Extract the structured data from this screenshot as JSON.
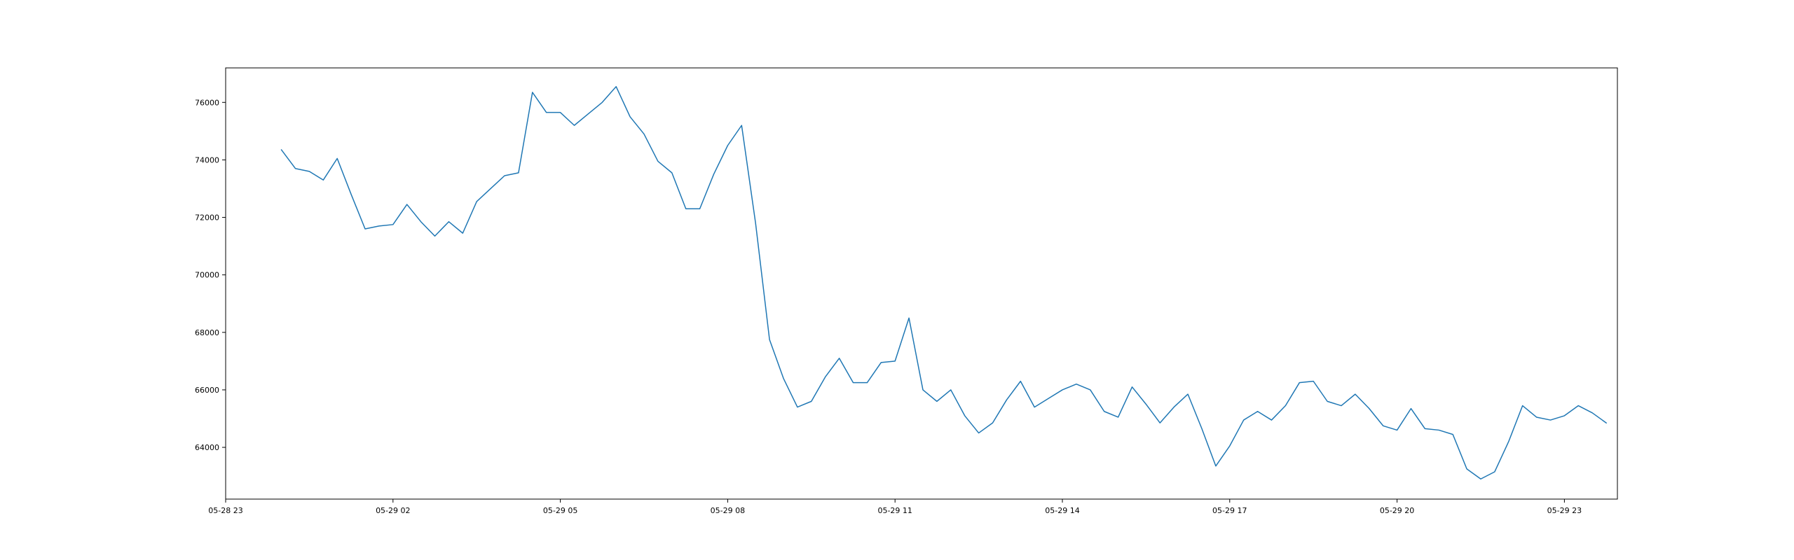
{
  "chart_data": {
    "type": "line",
    "title": "",
    "xlabel": "",
    "ylabel": "",
    "grid": false,
    "xlim": [
      "05-28 23:00",
      "05-29 23:57"
    ],
    "ylim": [
      62200,
      77200
    ],
    "x_ticks": [
      "05-28 23",
      "05-29 02",
      "05-29 05",
      "05-29 08",
      "05-29 11",
      "05-29 14",
      "05-29 17",
      "05-29 20",
      "05-29 23"
    ],
    "y_ticks": [
      "64000",
      "66000",
      "68000",
      "70000",
      "72000",
      "74000",
      "76000"
    ],
    "series": [
      {
        "color": "#1f77b4",
        "x": [
          "05-29 00:00",
          "05-29 00:15",
          "05-29 00:30",
          "05-29 00:45",
          "05-29 01:00",
          "05-29 01:15",
          "05-29 01:30",
          "05-29 01:45",
          "05-29 02:00",
          "05-29 02:15",
          "05-29 02:30",
          "05-29 02:45",
          "05-29 03:00",
          "05-29 03:15",
          "05-29 03:30",
          "05-29 03:45",
          "05-29 04:00",
          "05-29 04:15",
          "05-29 04:30",
          "05-29 04:45",
          "05-29 05:00",
          "05-29 05:15",
          "05-29 05:30",
          "05-29 05:45",
          "05-29 06:00",
          "05-29 06:15",
          "05-29 06:30",
          "05-29 06:45",
          "05-29 07:00",
          "05-29 07:15",
          "05-29 07:30",
          "05-29 07:45",
          "05-29 08:00",
          "05-29 08:15",
          "05-29 08:30",
          "05-29 08:45",
          "05-29 09:00",
          "05-29 09:15",
          "05-29 09:30",
          "05-29 09:45",
          "05-29 10:00",
          "05-29 10:15",
          "05-29 10:30",
          "05-29 10:45",
          "05-29 11:00",
          "05-29 11:15",
          "05-29 11:30",
          "05-29 11:45",
          "05-29 12:00",
          "05-29 12:15",
          "05-29 12:30",
          "05-29 12:45",
          "05-29 13:00",
          "05-29 13:15",
          "05-29 13:30",
          "05-29 13:45",
          "05-29 14:00",
          "05-29 14:15",
          "05-29 14:30",
          "05-29 14:45",
          "05-29 15:00",
          "05-29 15:15",
          "05-29 15:30",
          "05-29 15:45",
          "05-29 16:00",
          "05-29 16:15",
          "05-29 16:30",
          "05-29 16:45",
          "05-29 17:00",
          "05-29 17:15",
          "05-29 17:30",
          "05-29 17:45",
          "05-29 18:00",
          "05-29 18:15",
          "05-29 18:30",
          "05-29 18:45",
          "05-29 19:00",
          "05-29 19:15",
          "05-29 19:30",
          "05-29 19:45",
          "05-29 20:00",
          "05-29 20:15",
          "05-29 20:30",
          "05-29 20:45",
          "05-29 21:00",
          "05-29 21:15",
          "05-29 21:30",
          "05-29 21:45",
          "05-29 22:00",
          "05-29 22:15",
          "05-29 22:30",
          "05-29 22:45",
          "05-29 23:00",
          "05-29 23:15",
          "05-29 23:30",
          "05-29 23:45"
        ],
        "values": [
          74350,
          73700,
          73600,
          73300,
          74050,
          72800,
          71600,
          71700,
          71750,
          72450,
          71850,
          71350,
          71850,
          71450,
          72550,
          73000,
          73450,
          73550,
          76350,
          75650,
          75650,
          75200,
          75600,
          76000,
          76550,
          75500,
          74900,
          73950,
          73550,
          72300,
          72300,
          73500,
          74500,
          75200,
          71800,
          67750,
          66400,
          65400,
          65600,
          66450,
          67100,
          66250,
          66250,
          66950,
          67000,
          68500,
          66000,
          65600,
          66000,
          65100,
          64500,
          64850,
          65650,
          66300,
          65400,
          65700,
          66000,
          66200,
          66000,
          65250,
          65050,
          66100,
          65500,
          64850,
          65400,
          65850,
          64650,
          63350,
          64050,
          64950,
          65250,
          64950,
          65450,
          66250,
          66300,
          65600,
          65450,
          65850,
          65350,
          64750,
          64600,
          65350,
          64650,
          64600,
          64450,
          63250,
          62900,
          63150,
          64200,
          65450,
          65050,
          64950,
          65100,
          65450,
          65200,
          64850
        ]
      }
    ]
  }
}
